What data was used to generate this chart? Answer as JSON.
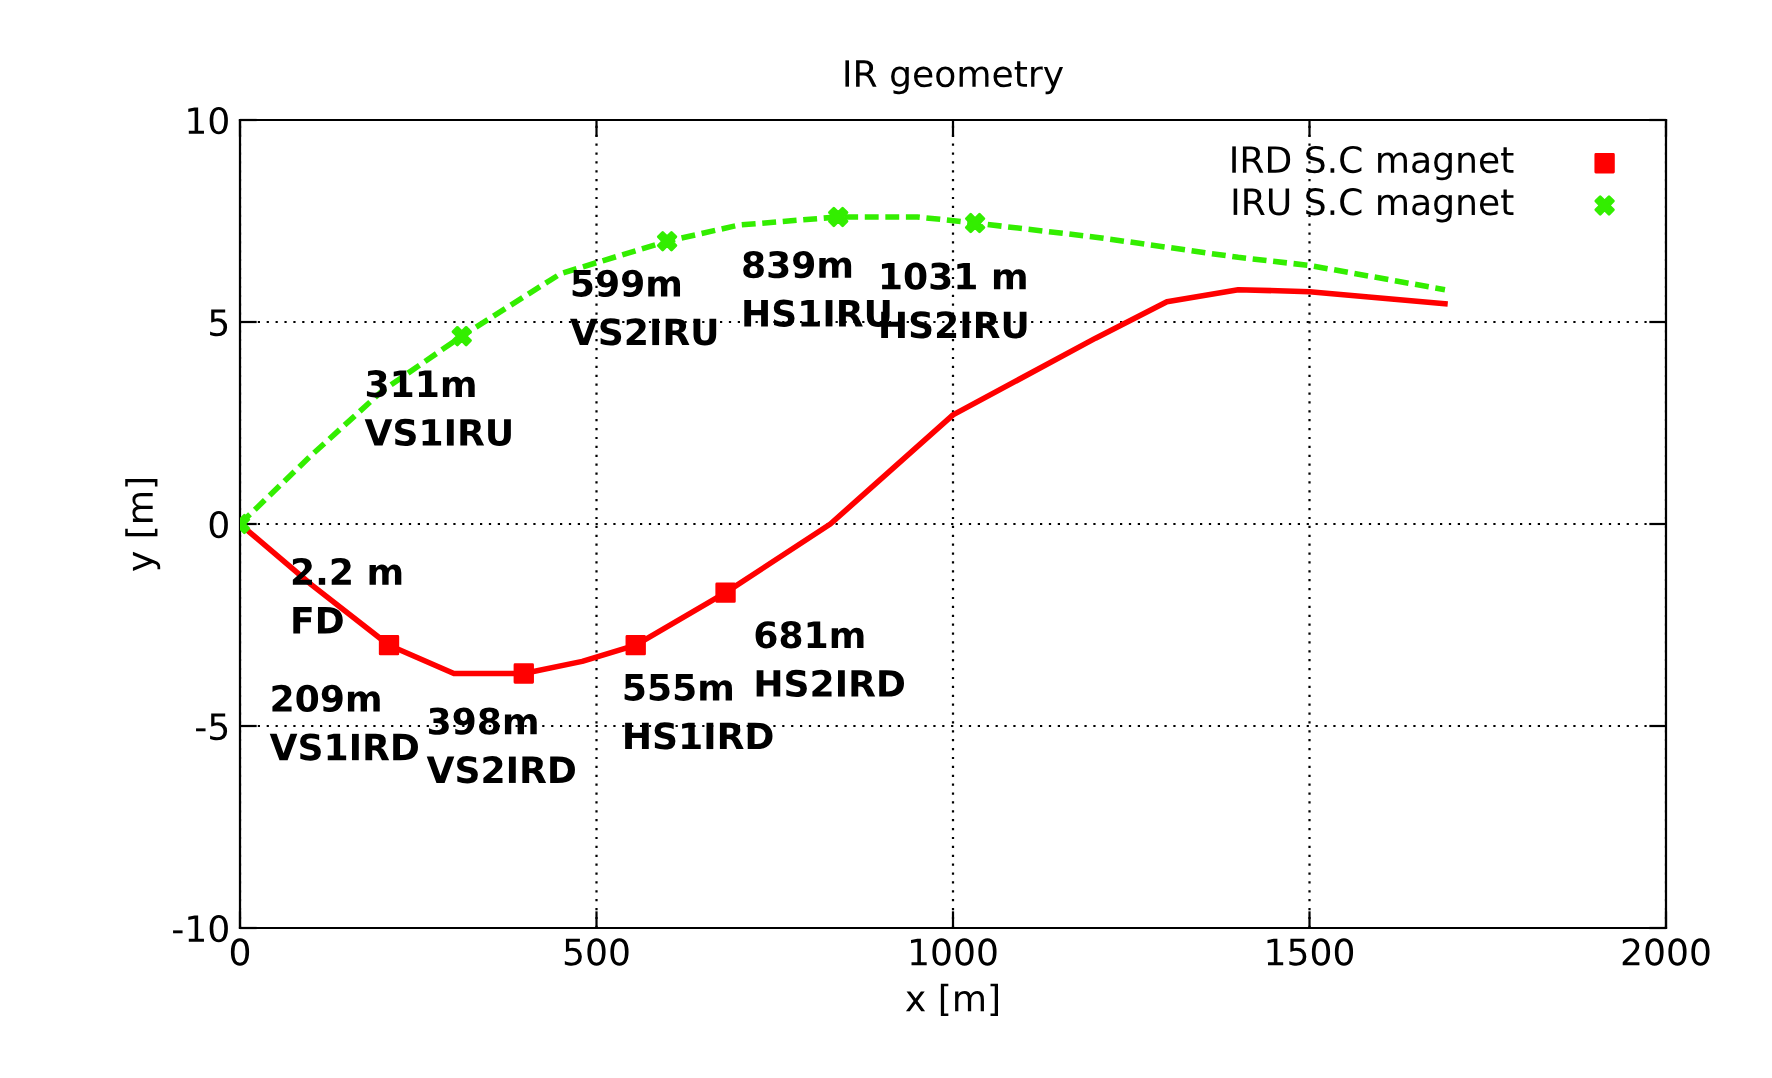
{
  "chart_data": {
    "type": "line",
    "title": "IR geometry",
    "xlabel": "x [m]",
    "ylabel": "y [m]",
    "xlim": [
      0,
      2000
    ],
    "xticks": [
      0,
      500,
      1000,
      1500,
      2000
    ],
    "ylim": [
      -10,
      10
    ],
    "yticks": [
      -10,
      -5,
      0,
      5,
      10
    ],
    "grid": true,
    "legend": "top right",
    "series": [
      {
        "color": "#ff0000",
        "line_style": "solid",
        "x": [
          0,
          100,
          209,
          300,
          398,
          480,
          555,
          681,
          828,
          1000,
          1200,
          1300,
          1400,
          1500,
          1690
        ],
        "values": [
          0,
          -1.5,
          -3.0,
          -3.7,
          -3.7,
          -3.4,
          -3.0,
          -1.7,
          0,
          2.7,
          4.6,
          5.5,
          5.8,
          5.75,
          5.45
        ]
      },
      {
        "color": "#33ee00",
        "line_style": "dashed",
        "x": [
          0,
          100,
          200,
          311,
          450,
          599,
          700,
          839,
          950,
          1031,
          1200,
          1400,
          1500,
          1690
        ],
        "values": [
          0,
          1.7,
          3.3,
          4.65,
          6.2,
          7.0,
          7.4,
          7.6,
          7.6,
          7.45,
          7.1,
          6.6,
          6.4,
          5.8
        ]
      },
      {
        "type": "scatter",
        "name": "IRD S.C magnet",
        "color": "#ff0000",
        "marker": "square",
        "x": [
          209,
          398,
          555,
          681
        ],
        "values": [
          -3.0,
          -3.7,
          -3.0,
          -1.7
        ]
      },
      {
        "type": "scatter",
        "name": "IRU S.C magnet",
        "color": "#33ee00",
        "marker": "cross",
        "x": [
          0,
          311,
          599,
          839,
          1031
        ],
        "values": [
          0,
          4.65,
          7.0,
          7.6,
          7.45
        ]
      }
    ],
    "annotations": [
      {
        "text": "2.2 m\nFD",
        "x": 0,
        "y": 0
      },
      {
        "text": "311m\nVS1IRU",
        "x": 311,
        "y": 4.65
      },
      {
        "text": "599m\nVS2IRU",
        "x": 599,
        "y": 7.0
      },
      {
        "text": "839m\nHS1IRU",
        "x": 839,
        "y": 7.6
      },
      {
        "text": "1031 m\nHS2IRU",
        "x": 1031,
        "y": 7.45
      },
      {
        "text": "209m\nVS1IRD",
        "x": 209,
        "y": -3.0
      },
      {
        "text": "398m\nVS2IRD",
        "x": 398,
        "y": -3.7
      },
      {
        "text": "555m\nHS1IRD",
        "x": 555,
        "y": -3.0
      },
      {
        "text": "681m\nHS2IRD",
        "x": 681,
        "y": -1.7
      }
    ]
  }
}
